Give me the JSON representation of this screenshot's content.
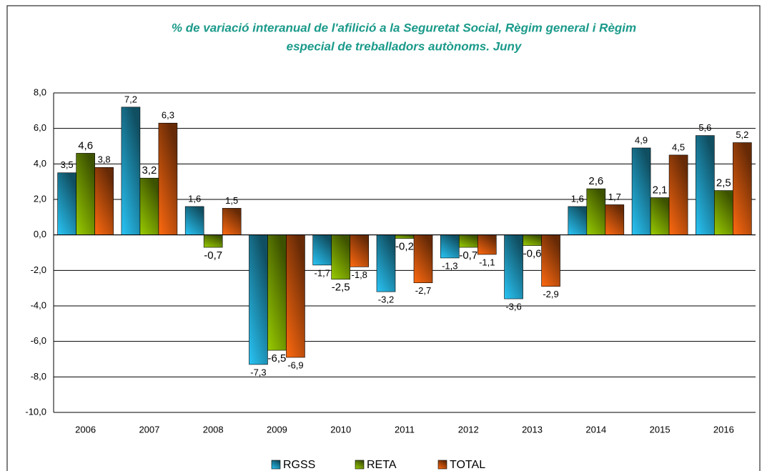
{
  "chart_data": {
    "type": "bar",
    "title": [
      "% de variació interanual de l'afilició a la Seguretat Social, Règim general i Règim",
      "especial de treballadors autònoms. Juny"
    ],
    "categories": [
      "2006",
      "2007",
      "2008",
      "2009",
      "2010",
      "2011",
      "2012",
      "2013",
      "2014",
      "2015",
      "2016"
    ],
    "series": [
      {
        "name": "RGSS",
        "color": "#29c5f6",
        "values": [
          3.5,
          7.2,
          1.6,
          -7.3,
          -1.7,
          -3.2,
          -1.3,
          -3.6,
          1.6,
          4.9,
          5.6
        ],
        "value_labels": [
          "3,5",
          "7,2",
          "1,6",
          "-7,3",
          "-1,7",
          "-3,2",
          "-1,3",
          "-3,6",
          "1,6",
          "4,9",
          "5,6"
        ]
      },
      {
        "name": "RETA",
        "color": "#99cc00",
        "values": [
          4.6,
          3.2,
          -0.7,
          -6.5,
          -2.5,
          -0.2,
          -0.7,
          -0.6,
          2.6,
          2.1,
          2.5
        ],
        "value_labels": [
          "4,6",
          "3,2",
          "-0,7",
          "-6,5",
          "-2,5",
          "-0,2",
          "-0,7",
          "-0,6",
          "2,6",
          "2,1",
          "2,5"
        ]
      },
      {
        "name": "TOTAL",
        "color": "#ff6a10",
        "values": [
          3.8,
          6.3,
          1.5,
          -6.9,
          -1.8,
          -2.7,
          -1.1,
          -2.9,
          1.7,
          4.5,
          5.2
        ],
        "value_labels": [
          "3,8",
          "6,3",
          "1,5",
          "-6,9",
          "-1,8",
          "-2,7",
          "-1,1",
          "-2,9",
          "1,7",
          "4,5",
          "5,2"
        ]
      }
    ],
    "ylim": [
      -10,
      8
    ],
    "yticks": [
      {
        "value": -10,
        "label": "-10,0"
      },
      {
        "value": -8,
        "label": "-8,0"
      },
      {
        "value": -6,
        "label": "-6,0"
      },
      {
        "value": -4,
        "label": "-4,0"
      },
      {
        "value": -2,
        "label": "-2,0"
      },
      {
        "value": 0,
        "label": "0,0"
      },
      {
        "value": 2,
        "label": "2,0"
      },
      {
        "value": 4,
        "label": "4,0"
      },
      {
        "value": 6,
        "label": "6,0"
      },
      {
        "value": 8,
        "label": "8,0"
      }
    ],
    "grid": true,
    "legend": "bottom"
  }
}
